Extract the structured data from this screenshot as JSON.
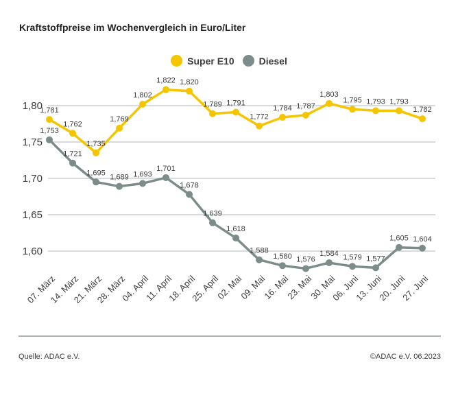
{
  "footer": {
    "source": "Quelle: ADAC e.V.",
    "copyright": "©ADAC e.V. 06.2023"
  },
  "chart_data": {
    "type": "line",
    "title": "Kraftstoffpreise im Wochenvergleich in Euro/Liter",
    "xlabel": "",
    "ylabel": "Euro/Liter",
    "grid": true,
    "legend_position": "top-center",
    "decimal_separator": ",",
    "categories": [
      "07. März",
      "14. März",
      "21. März",
      "28. März",
      "04. April",
      "11. April",
      "18. April",
      "25. April",
      "02. Mai",
      "09. Mai",
      "16. Mai",
      "23. Mai",
      "30. Mai",
      "06. Juni",
      "13. Juni",
      "20. Juni",
      "27. Juni"
    ],
    "yticks": [
      1.8,
      1.75,
      1.7,
      1.65,
      1.6
    ],
    "ytick_labels": [
      "1,80",
      "1,75",
      "1,70",
      "1,65",
      "1,60"
    ],
    "ylim": [
      1.555,
      1.845
    ],
    "series": [
      {
        "name": "Super E10",
        "color": "#F5C500",
        "values": [
          1.781,
          1.762,
          1.735,
          1.769,
          1.802,
          1.822,
          1.82,
          1.789,
          1.791,
          1.772,
          1.784,
          1.787,
          1.803,
          1.795,
          1.793,
          1.793,
          1.782
        ]
      },
      {
        "name": "Diesel",
        "color": "#7C8C8A",
        "values": [
          1.753,
          1.721,
          1.695,
          1.689,
          1.693,
          1.701,
          1.678,
          1.639,
          1.618,
          1.588,
          1.58,
          1.576,
          1.584,
          1.579,
          1.577,
          1.605,
          1.604
        ]
      }
    ],
    "colors": {
      "gridline": "#CBCFCF",
      "text": "#3c3c3c",
      "divider": "#aab2b2"
    }
  }
}
